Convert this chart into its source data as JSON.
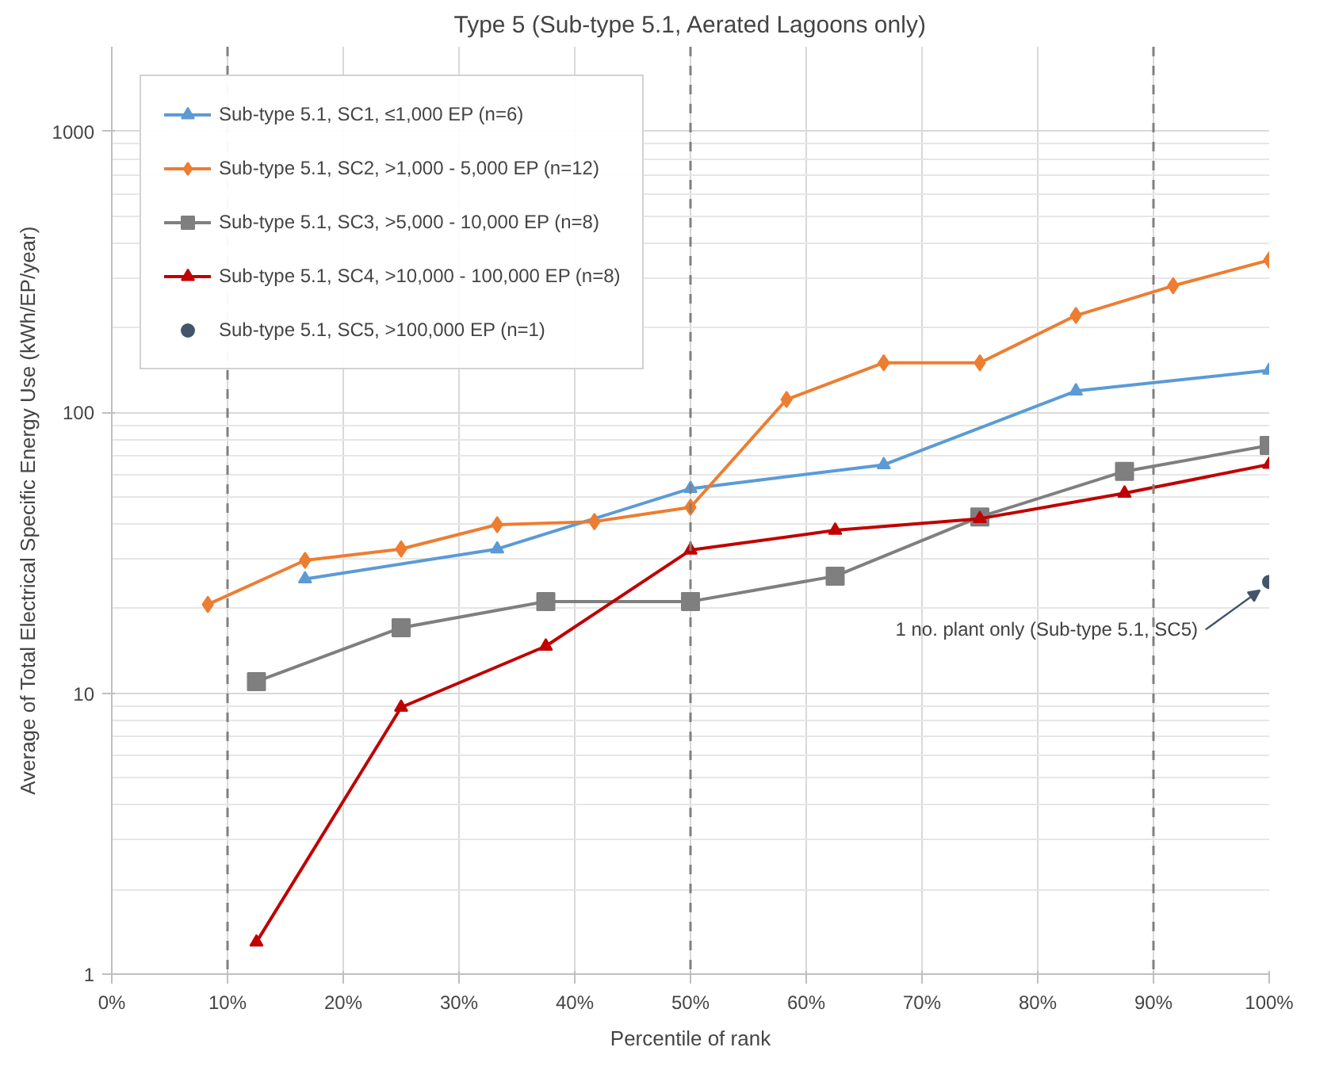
{
  "chart_data": {
    "type": "line",
    "title": "Type 5 (Sub-type 5.1, Aerated Lagoons only)",
    "xlabel": "Percentile of rank",
    "ylabel": "Average of Total Electrical Specific Energy Use (kWh/EP/year)",
    "log": "y",
    "grid": true,
    "legend": "top left",
    "xlim": [
      0,
      100
    ],
    "xticks": [
      {
        "value": 0,
        "label": "0%"
      },
      {
        "value": 10,
        "label": "10%"
      },
      {
        "value": 20,
        "label": "20%"
      },
      {
        "value": 30,
        "label": "30%"
      },
      {
        "value": 40,
        "label": "40%"
      },
      {
        "value": 50,
        "label": "50%"
      },
      {
        "value": 60,
        "label": "60%"
      },
      {
        "value": 70,
        "label": "70%"
      },
      {
        "value": 80,
        "label": "80%"
      },
      {
        "value": 90,
        "label": "90%"
      },
      {
        "value": 100,
        "label": "100%"
      }
    ],
    "ylim": [
      1,
      2000
    ],
    "yticks": [
      1,
      10,
      100,
      1000
    ],
    "series": [
      {
        "name": "Sub-type 5.1, SC1, ≤1,000 EP (n=6)",
        "color": "#5b9bd5",
        "marker": "triangle",
        "x": [
          16.7,
          33.3,
          50,
          66.7,
          83.3,
          100
        ],
        "values": [
          25.5,
          32.6,
          53.5,
          65,
          119,
          141
        ]
      },
      {
        "name": "Sub-type 5.1, SC2, >1,000 - 5,000 EP (n=12)",
        "color": "#ed7d31",
        "marker": "diamond",
        "x": [
          8.3,
          16.7,
          25,
          33.3,
          41.7,
          50,
          58.3,
          66.7,
          75,
          83.3,
          91.7,
          100
        ],
        "values": [
          20.7,
          29.7,
          32.6,
          39.8,
          40.8,
          45.9,
          111,
          150,
          150,
          221,
          282,
          348
        ]
      },
      {
        "name": "Sub-type 5.1, SC3, >5,000 - 10,000 EP (n=8)",
        "color": "#7f7f7f",
        "marker": "square",
        "x": [
          12.5,
          25,
          37.5,
          50,
          62.5,
          75,
          87.5,
          100
        ],
        "values": [
          11.0,
          17.1,
          21.2,
          21.2,
          26.1,
          42.4,
          61.6,
          76.2
        ]
      },
      {
        "name": "Sub-type 5.1, SC4, >10,000 - 100,000 EP (n=8)",
        "color": "#c00000",
        "marker": "triangle",
        "x": [
          12.5,
          25,
          37.5,
          50,
          62.5,
          75,
          87.5,
          100
        ],
        "values": [
          1.3,
          8.9,
          14.7,
          32.3,
          38.0,
          41.8,
          51.5,
          65.2
        ]
      },
      {
        "name": "Sub-type 5.1, SC5, >100,000 EP (n=1)",
        "color": "#44546a",
        "marker": "circle",
        "x": [
          100
        ],
        "values": [
          24.9
        ]
      }
    ],
    "ref_lines": [
      {
        "axis": "x",
        "value": 10,
        "color": "#808080",
        "line_style": "dashed"
      },
      {
        "axis": "x",
        "value": 50,
        "color": "#808080",
        "line_style": "dashed"
      },
      {
        "axis": "x",
        "value": 90,
        "color": "#808080",
        "line_style": "dashed"
      }
    ],
    "annotations": [
      {
        "text": "1 no. plant only (Sub-type 5.1, SC5)",
        "x": 100,
        "y": 24.9
      }
    ]
  }
}
